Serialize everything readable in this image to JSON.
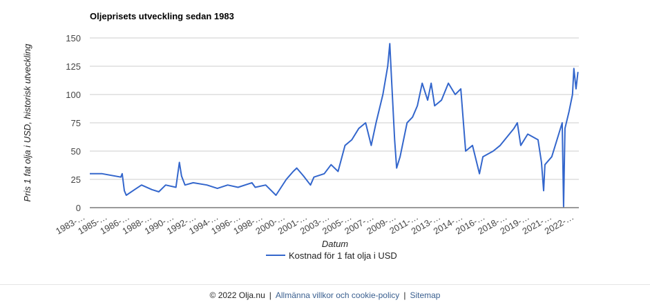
{
  "chart_data": {
    "type": "line",
    "title": "Oljeprisets utveckling sedan 1983",
    "y_label": "Pris 1 fat olja i USD, historisk utveckling",
    "x_label": "Datum",
    "x": [
      1983.0,
      1984.0,
      1985.5,
      1985.61,
      1985.78,
      1985.94,
      1986.61,
      1987.17,
      1988.0,
      1988.56,
      1989.11,
      1989.94,
      1990.22,
      1990.39,
      1990.67,
      1991.33,
      1992.44,
      1993.28,
      1994.11,
      1994.94,
      1996.06,
      1996.33,
      1997.17,
      1998.0,
      1998.83,
      1999.39,
      1999.67,
      2000.22,
      2000.78,
      2001.06,
      2001.89,
      2002.44,
      2003.0,
      2003.56,
      2004.11,
      2004.67,
      2005.22,
      2005.67,
      2006.06,
      2006.61,
      2007.0,
      2007.17,
      2007.28,
      2007.56,
      2007.72,
      2008.0,
      2008.56,
      2009.0,
      2009.39,
      2009.78,
      2010.22,
      2010.5,
      2010.78,
      2011.33,
      2011.89,
      2012.44,
      2012.89,
      2013.28,
      2013.83,
      2014.39,
      2014.67,
      2015.5,
      2016.06,
      2017.17,
      2017.44,
      2017.72,
      2018.28,
      2019.11,
      2019.39,
      2019.56,
      2019.67,
      2020.22,
      2021.06,
      2021.17,
      2021.28,
      2021.61,
      2021.89,
      2022.0,
      2022.17,
      2022.33
    ],
    "series": [
      {
        "name": "Kostnad för 1 fat olja i USD",
        "color": "#3366cc",
        "values": [
          30,
          30,
          27,
          30,
          15,
          11,
          16,
          20,
          16,
          14,
          20,
          18,
          40,
          28,
          20,
          22,
          20,
          17,
          20,
          18,
          22,
          18,
          20,
          11,
          25,
          32,
          35,
          28,
          20,
          27,
          30,
          38,
          32,
          55,
          60,
          70,
          75,
          55,
          75,
          100,
          125,
          145,
          120,
          60,
          35,
          45,
          75,
          80,
          90,
          110,
          95,
          110,
          90,
          95,
          110,
          100,
          105,
          50,
          55,
          30,
          45,
          50,
          55,
          70,
          75,
          55,
          65,
          60,
          40,
          15,
          38,
          45,
          75,
          1,
          70,
          85,
          100,
          123,
          105,
          120
        ]
      }
    ],
    "xlim": [
      1983,
      2022.4
    ],
    "xticks": [
      {
        "value": 1983.0,
        "label": "1983-…"
      },
      {
        "value": 1984.79,
        "label": "1985-…"
      },
      {
        "value": 1986.58,
        "label": "1986-…"
      },
      {
        "value": 1988.37,
        "label": "1988-…"
      },
      {
        "value": 1990.16,
        "label": "1990-…"
      },
      {
        "value": 1991.95,
        "label": "1992-…"
      },
      {
        "value": 1993.74,
        "label": "1994-…"
      },
      {
        "value": 1995.53,
        "label": "1996-…"
      },
      {
        "value": 1997.32,
        "label": "1998-…"
      },
      {
        "value": 1999.11,
        "label": "2000-…"
      },
      {
        "value": 2000.9,
        "label": "2001-…"
      },
      {
        "value": 2002.69,
        "label": "2003-…"
      },
      {
        "value": 2004.48,
        "label": "2005-…"
      },
      {
        "value": 2006.27,
        "label": "2007-…"
      },
      {
        "value": 2008.06,
        "label": "2009-…"
      },
      {
        "value": 2009.85,
        "label": "2011-…"
      },
      {
        "value": 2011.64,
        "label": "2013-…"
      },
      {
        "value": 2013.43,
        "label": "2014-…"
      },
      {
        "value": 2015.22,
        "label": "2016-…"
      },
      {
        "value": 2017.01,
        "label": "2018-…"
      },
      {
        "value": 2018.8,
        "label": "2019-…"
      },
      {
        "value": 2020.59,
        "label": "2021-…"
      },
      {
        "value": 2022.38,
        "label": "2022-…"
      }
    ],
    "ylim": [
      0,
      150
    ],
    "yticks": [
      0,
      25,
      50,
      75,
      100,
      125,
      150
    ],
    "grid": true,
    "legend": "bottom"
  },
  "footer": {
    "copyright": "© 2022 Olja.nu",
    "separator": "|",
    "links": [
      "Allmänna villkor och cookie-policy",
      "Sitemap"
    ]
  }
}
